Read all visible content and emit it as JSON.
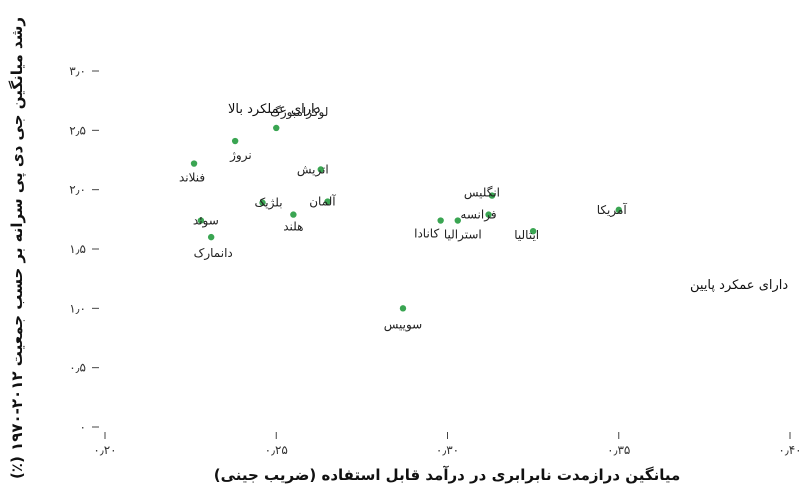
{
  "chart_data": {
    "type": "scatter",
    "xlabel": "میانگین درازمدت نابرابری در درآمد قابل استفاده (ضریب جینی)",
    "ylabel": "رشد میانگین جی دی پی سرانه بر حسب جمعیت ۲۰۱۲-۱۹۷۰ (٪)",
    "xlim": [
      0.2,
      0.4
    ],
    "ylim": [
      0,
      3.0
    ],
    "x_ticks": [
      0.2,
      0.25,
      0.3,
      0.35,
      0.4
    ],
    "x_tick_labels": [
      "۰٫۲۰",
      "۰٫۲۵",
      "۰٫۳۰",
      "۰٫۳۵",
      "۰٫۴۰"
    ],
    "y_ticks": [
      0,
      0.5,
      1.0,
      1.5,
      2.0,
      2.5,
      3.0
    ],
    "y_tick_labels": [
      "۰",
      "۰٫۵",
      "۱٫۰",
      "۱٫۵",
      "۲٫۰",
      "۲٫۵",
      "۳٫۰"
    ],
    "grid": false,
    "point_color": "#3aa552",
    "points": [
      {
        "label": "لوکزامبورگ",
        "x": 0.25,
        "y": 2.52
      },
      {
        "label": "نروژ",
        "x": 0.238,
        "y": 2.41
      },
      {
        "label": "فنلاند",
        "x": 0.226,
        "y": 2.22
      },
      {
        "label": "اتریش",
        "x": 0.263,
        "y": 2.17
      },
      {
        "label": "آلمان",
        "x": 0.265,
        "y": 1.9
      },
      {
        "label": "بلژیک",
        "x": 0.246,
        "y": 1.89
      },
      {
        "label": "هلند",
        "x": 0.255,
        "y": 1.79
      },
      {
        "label": "سوئد",
        "x": 0.228,
        "y": 1.74
      },
      {
        "label": "دانمارک",
        "x": 0.231,
        "y": 1.6
      },
      {
        "label": "انگلیس",
        "x": 0.313,
        "y": 1.95
      },
      {
        "label": "فرانسه",
        "x": 0.312,
        "y": 1.79
      },
      {
        "label": "کانادا",
        "x": 0.298,
        "y": 1.74
      },
      {
        "label": "استرالیا",
        "x": 0.303,
        "y": 1.74
      },
      {
        "label": "ایتالیا",
        "x": 0.325,
        "y": 1.65
      },
      {
        "label": "آمریکا",
        "x": 0.35,
        "y": 1.83
      },
      {
        "label": "سوییس",
        "x": 0.287,
        "y": 1.0
      }
    ],
    "annotations": [
      {
        "text": "دارای عملکرد بالا"
      },
      {
        "text": "دارای عمکرد پایین"
      }
    ]
  }
}
